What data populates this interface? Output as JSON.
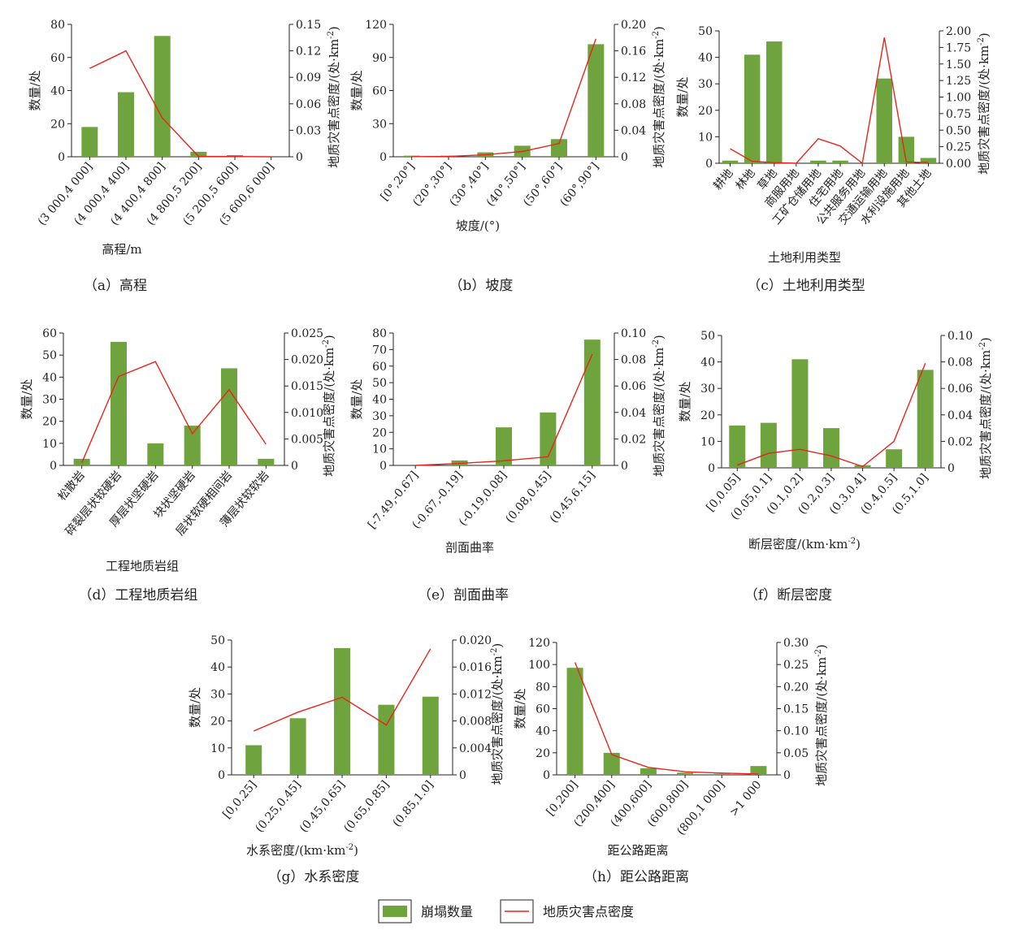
{
  "colors": {
    "bar": "#6ea33d",
    "line": "#e8251c",
    "axis": "#222222"
  },
  "legend": {
    "bar_label": "崩塌数量",
    "line_label": "地质灾害点密度"
  },
  "chart_data": [
    {
      "type": "bar",
      "caption": "（a）高程",
      "xlabel": "高程/m",
      "ylabel": "数量/处",
      "y2label": "地质灾害点密度/(处·km-2)",
      "categories": [
        "(3 000,4 000]",
        "(4 000,4 400]",
        "(4 400,4 800]",
        "(4 800,5 200]",
        "(5 200,5 600]",
        "(5 600,6 000]"
      ],
      "values": [
        18,
        39,
        73,
        3,
        1,
        0
      ],
      "line_values": [
        0.1,
        0.12,
        0.044,
        0.0005,
        0.0003,
        0
      ],
      "ylim": [
        0,
        80
      ],
      "yticks": [
        "0",
        "20",
        "40",
        "60",
        "80"
      ],
      "y2lim": [
        0,
        0.15
      ],
      "y2ticks": [
        "0",
        "0.03",
        "0.06",
        "0.09",
        "0.12",
        "0.15"
      ]
    },
    {
      "type": "bar",
      "caption": "（b）坡度",
      "xlabel": "坡度/(°)",
      "ylabel": "数量/处",
      "y2label": "地质灾害点密度/(处·km-2)",
      "categories": [
        "[0°,20°]",
        "(20°,30°]",
        "(30°,40°]",
        "(40°,50°]",
        "(50°,60°]",
        "(60°,90°]"
      ],
      "values": [
        1,
        1,
        4,
        10,
        16,
        102
      ],
      "line_values": [
        0.0002,
        0.0005,
        0.003,
        0.008,
        0.02,
        0.178
      ],
      "ylim": [
        0,
        120
      ],
      "yticks": [
        "0",
        "30",
        "60",
        "90",
        "120"
      ],
      "y2lim": [
        0,
        0.2
      ],
      "y2ticks": [
        "0",
        "0.04",
        "0.08",
        "0.12",
        "0.16",
        "0.20"
      ]
    },
    {
      "type": "bar",
      "caption": "（c）土地利用类型",
      "xlabel": "土地利用类型",
      "ylabel": "数量/处",
      "y2label": "地质灾害点密度/(处·km-2)",
      "categories": [
        "耕地",
        "林地",
        "草地",
        "商服用地",
        "工矿仓储用地",
        "住宅用地",
        "公共服务用地",
        "交通运输用地",
        "水利设施用地",
        "其他土地"
      ],
      "values": [
        1,
        41,
        46,
        0,
        1,
        1,
        0,
        32,
        10,
        2
      ],
      "line_values": [
        0.22,
        0.03,
        0.01,
        0.0,
        0.37,
        0.26,
        0.0,
        1.9,
        0.02,
        0.01
      ],
      "ylim": [
        0,
        50
      ],
      "yticks": [
        "0",
        "10",
        "20",
        "30",
        "40",
        "50"
      ],
      "y2lim": [
        0,
        2.0
      ],
      "y2ticks": [
        "0.00",
        "0.25",
        "0.50",
        "0.75",
        "1.00",
        "1.25",
        "1.50",
        "1.75",
        "2.00"
      ]
    },
    {
      "type": "bar",
      "caption": "（d）工程地质岩组",
      "xlabel": "工程地质岩组",
      "ylabel": "数量/处",
      "y2label": "地质灾害点密度/(处·km-2)",
      "categories": [
        "松散岩",
        "碎裂层状较硬岩",
        "厚层状坚硬岩",
        "块状坚硬岩",
        "层状软硬相间岩",
        "薄层状较软岩"
      ],
      "values": [
        3,
        56,
        10,
        18,
        44,
        3
      ],
      "line_values": [
        0.0005,
        0.0168,
        0.0196,
        0.006,
        0.0143,
        0.004
      ],
      "ylim": [
        0,
        60
      ],
      "yticks": [
        "0",
        "10",
        "20",
        "30",
        "40",
        "50",
        "60"
      ],
      "y2lim": [
        0,
        0.025
      ],
      "y2ticks": [
        "0",
        "0.005",
        "0.010",
        "0.015",
        "0.020",
        "0.025"
      ]
    },
    {
      "type": "bar",
      "caption": "（e）剖面曲率",
      "xlabel": "剖面曲率",
      "ylabel": "数量/处",
      "y2label": "地质灾害点密度/(处·km-2)",
      "categories": [
        "[-7.49,-0.67]",
        "(-0.67,-0.19]",
        "(-0.19,0.08]",
        "(0.08,0.45]",
        "(0.45,6.15]"
      ],
      "values": [
        0,
        3,
        23,
        32,
        76
      ],
      "line_values": [
        0.0,
        0.0015,
        0.0035,
        0.0065,
        0.084
      ],
      "ylim": [
        0,
        80
      ],
      "yticks": [
        "0",
        "10",
        "20",
        "30",
        "40",
        "50",
        "60",
        "70",
        "80"
      ],
      "y2lim": [
        0,
        0.1
      ],
      "y2ticks": [
        "0",
        "0.02",
        "0.04",
        "0.06",
        "0.08",
        "0.10"
      ]
    },
    {
      "type": "bar",
      "caption": "（f）断层密度",
      "xlabel": "断层密度/(km·km-2)",
      "ylabel": "数量/处",
      "y2label": "地质灾害点密度/(处·km-2)",
      "categories": [
        "[0,0.05]",
        "(0.05,0.1]",
        "(0.1,0.2]",
        "(0.2,0.3]",
        "(0.3,0.4]",
        "(0.4,0.5]",
        "(0.5,1.0]"
      ],
      "values": [
        16,
        17,
        41,
        15,
        1,
        7,
        37
      ],
      "line_values": [
        0.002,
        0.011,
        0.014,
        0.009,
        0.001,
        0.02,
        0.079
      ],
      "ylim": [
        0,
        50
      ],
      "yticks": [
        "0",
        "10",
        "20",
        "30",
        "40",
        "50"
      ],
      "y2lim": [
        0,
        0.1
      ],
      "y2ticks": [
        "0",
        "0.02",
        "0.04",
        "0.06",
        "0.08",
        "0.10"
      ]
    },
    {
      "type": "bar",
      "caption": "（g）水系密度",
      "xlabel": "水系密度/(km·km-2)",
      "ylabel": "数量/处",
      "y2label": "地质灾害点密度/(处·km-2)",
      "categories": [
        "[0,0.25]",
        "(0.25,0.45]",
        "(0.45,0.65]",
        "(0.65,0.85]",
        "(0.85,1.0]"
      ],
      "values": [
        11,
        21,
        47,
        26,
        29
      ],
      "line_values": [
        0.0065,
        0.0093,
        0.0115,
        0.0074,
        0.0187
      ],
      "ylim": [
        0,
        50
      ],
      "yticks": [
        "0",
        "10",
        "20",
        "30",
        "40",
        "50"
      ],
      "y2lim": [
        0,
        0.02
      ],
      "y2ticks": [
        "0",
        "0.004",
        "0.008",
        "0.012",
        "0.016",
        "0.020"
      ]
    },
    {
      "type": "bar",
      "caption": "（h）距公路距离",
      "xlabel": "距公路距离",
      "ylabel": "数量/处",
      "y2label": "地质灾害点密度/(处·km-2)",
      "categories": [
        "[0,200]",
        "(200,400]",
        "(400,600]",
        "(600,800]",
        "(800,1 000]",
        ">1 000"
      ],
      "values": [
        97,
        20,
        6,
        2,
        1,
        8
      ],
      "line_values": [
        0.255,
        0.046,
        0.017,
        0.007,
        0.004,
        0.002
      ],
      "ylim": [
        0,
        120
      ],
      "yticks": [
        "0",
        "20",
        "40",
        "60",
        "80",
        "100",
        "120"
      ],
      "y2lim": [
        0,
        0.3
      ],
      "y2ticks": [
        "0",
        "0.05",
        "0.10",
        "0.15",
        "0.20",
        "0.25",
        "0.30"
      ]
    }
  ]
}
